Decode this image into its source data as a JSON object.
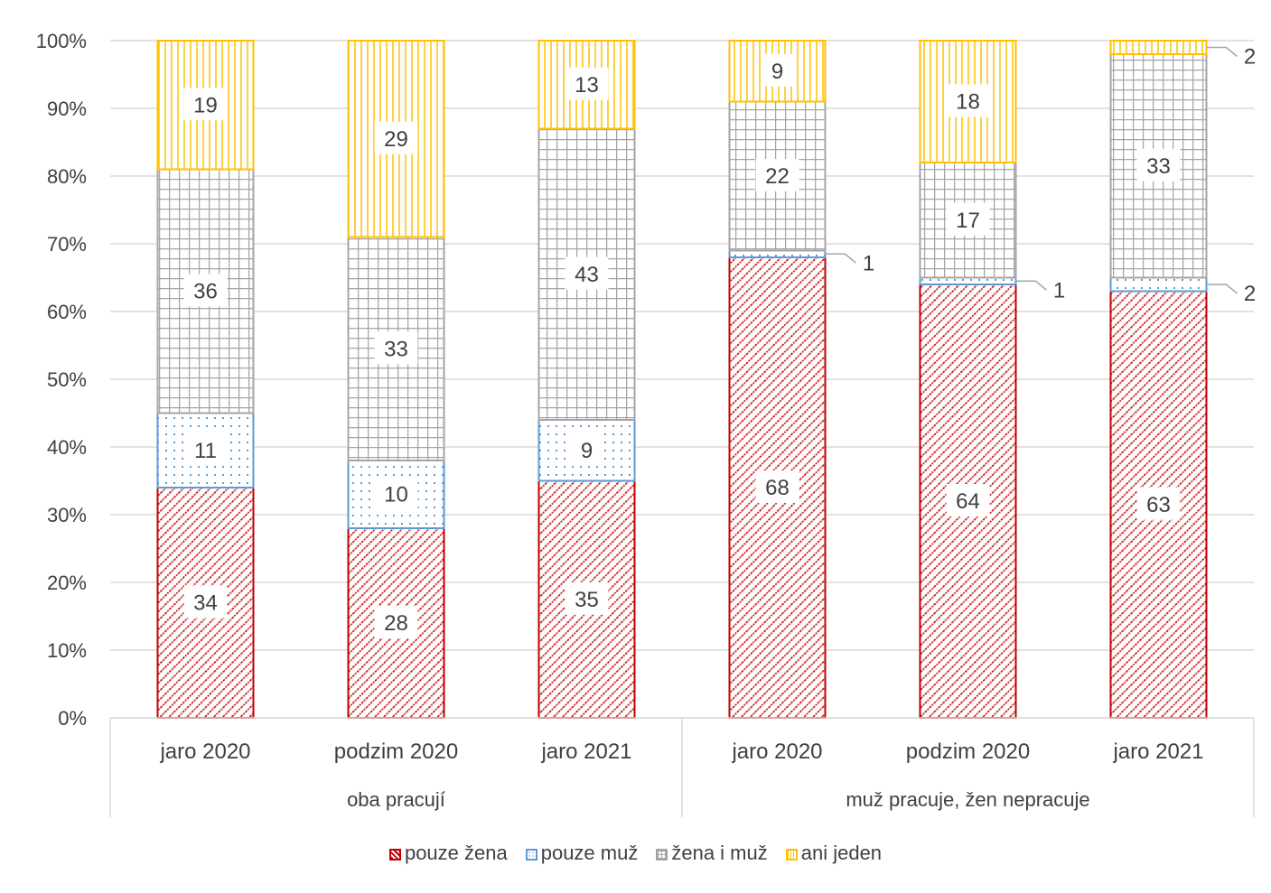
{
  "chart_data": {
    "type": "bar",
    "stacked": true,
    "percent_stacked": true,
    "categories": [
      "jaro 2020",
      "podzim 2020",
      "jaro 2021",
      "jaro 2020",
      "podzim 2020",
      "jaro 2021"
    ],
    "groups": [
      {
        "label": "oba pracují",
        "categories": [
          "jaro 2020",
          "podzim 2020",
          "jaro 2021"
        ]
      },
      {
        "label": "muž pracuje, žen nepracuje",
        "categories": [
          "jaro 2020",
          "podzim 2020",
          "jaro 2021"
        ]
      }
    ],
    "series": [
      {
        "name": "pouze žena",
        "values": [
          34,
          28,
          35,
          68,
          64,
          63
        ],
        "color": "#c00000"
      },
      {
        "name": "pouze muž",
        "values": [
          11,
          10,
          9,
          1,
          1,
          2
        ],
        "color": "#5b9bd5"
      },
      {
        "name": "žena i muž",
        "values": [
          36,
          33,
          43,
          22,
          17,
          33
        ],
        "color": "#a5a5a5"
      },
      {
        "name": "ani jeden",
        "values": [
          19,
          29,
          13,
          9,
          18,
          2
        ],
        "color": "#ffc000"
      }
    ],
    "y_ticks": [
      "0%",
      "10%",
      "20%",
      "30%",
      "40%",
      "50%",
      "60%",
      "70%",
      "80%",
      "90%",
      "100%"
    ],
    "ylim": [
      0,
      100
    ],
    "grid": true,
    "legend_position": "bottom"
  }
}
